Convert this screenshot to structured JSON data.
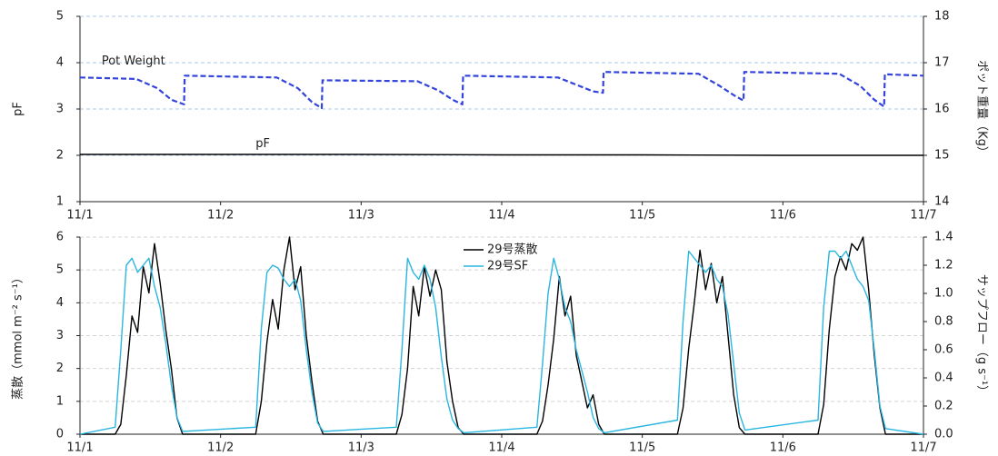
{
  "chart_data": [
    {
      "type": "line",
      "ylabel": "pF",
      "y2label": "ポット重量（Kg）",
      "xlim": [
        0,
        6
      ],
      "xticks": [
        {
          "value": 0,
          "label": "11/1"
        },
        {
          "value": 1,
          "label": "11/2"
        },
        {
          "value": 2,
          "label": "11/3"
        },
        {
          "value": 3,
          "label": "11/4"
        },
        {
          "value": 4,
          "label": "11/5"
        },
        {
          "value": 5,
          "label": "11/6"
        },
        {
          "value": 6,
          "label": "11/7"
        }
      ],
      "ylim": [
        1,
        5
      ],
      "yticks": [
        1,
        2,
        3,
        4,
        5
      ],
      "y2lim": [
        14,
        18
      ],
      "y2ticks": [
        14,
        15,
        16,
        17,
        18
      ],
      "grid": true,
      "grid_color": "#a8c8e8",
      "annotations": [
        "Pot Weight",
        "pF"
      ],
      "series": [
        {
          "name": "pF",
          "color": "#000000",
          "dash": false,
          "x": [
            0,
            1,
            2,
            3,
            4,
            5,
            6
          ],
          "values": [
            2.02,
            2.02,
            2.02,
            2.01,
            2.01,
            2.0,
            2.0
          ]
        },
        {
          "name": "Pot Weight",
          "color": "#3344dd",
          "dash": true,
          "axis": "y2",
          "x": [
            0,
            0.4,
            0.55,
            0.65,
            0.74,
            0.745,
            1.4,
            1.55,
            1.65,
            1.72,
            1.725,
            2.4,
            2.55,
            2.65,
            2.72,
            2.725,
            3.4,
            3.55,
            3.65,
            3.72,
            3.725,
            4.4,
            4.55,
            4.65,
            4.72,
            4.725,
            5.4,
            5.55,
            5.65,
            5.72,
            5.725,
            6
          ],
          "values": [
            16.68,
            16.65,
            16.45,
            16.2,
            16.1,
            16.72,
            16.68,
            16.45,
            16.15,
            16.02,
            16.62,
            16.6,
            16.4,
            16.2,
            16.1,
            16.72,
            16.68,
            16.5,
            16.38,
            16.35,
            16.8,
            16.76,
            16.5,
            16.3,
            16.18,
            16.8,
            16.76,
            16.5,
            16.2,
            16.05,
            16.75,
            16.72
          ]
        }
      ]
    },
    {
      "type": "line",
      "ylabel": "蒸散（mmol m⁻² s⁻¹）",
      "y2label": "サップフロー（g s⁻¹）",
      "xlim": [
        0,
        6
      ],
      "xticks": [
        {
          "value": 0,
          "label": "11/1"
        },
        {
          "value": 1,
          "label": "11/2"
        },
        {
          "value": 2,
          "label": "11/3"
        },
        {
          "value": 3,
          "label": "11/4"
        },
        {
          "value": 4,
          "label": "11/5"
        },
        {
          "value": 5,
          "label": "11/6"
        },
        {
          "value": 6,
          "label": "11/7"
        }
      ],
      "ylim": [
        0,
        6
      ],
      "yticks": [
        0,
        1,
        2,
        3,
        4,
        5,
        6
      ],
      "y2lim": [
        0,
        1.4
      ],
      "y2ticks": [
        {
          "value": 0,
          "label": "0.0"
        },
        0.2,
        0.4,
        0.6,
        0.8,
        {
          "value": 1,
          "label": "1.0"
        },
        1.2,
        1.4
      ],
      "grid": true,
      "grid_color": "#d4d4d4",
      "legend": "top",
      "x": [
        0,
        0.25,
        0.29,
        0.33,
        0.37,
        0.41,
        0.45,
        0.49,
        0.53,
        0.57,
        0.61,
        0.65,
        0.69,
        0.73,
        1.25,
        1.29,
        1.33,
        1.37,
        1.41,
        1.45,
        1.49,
        1.53,
        1.57,
        1.61,
        1.65,
        1.69,
        1.73,
        2.25,
        2.29,
        2.33,
        2.37,
        2.41,
        2.45,
        2.49,
        2.53,
        2.57,
        2.61,
        2.65,
        2.69,
        2.73,
        3.25,
        3.29,
        3.33,
        3.37,
        3.41,
        3.45,
        3.49,
        3.53,
        3.57,
        3.61,
        3.65,
        3.69,
        3.73,
        4.25,
        4.29,
        4.33,
        4.37,
        4.41,
        4.45,
        4.49,
        4.53,
        4.57,
        4.61,
        4.65,
        4.69,
        4.73,
        5.25,
        5.29,
        5.33,
        5.37,
        5.41,
        5.45,
        5.49,
        5.53,
        5.57,
        5.61,
        5.65,
        5.69,
        5.73,
        6
      ],
      "series": [
        {
          "name": "29号蒸散",
          "color": "#000000",
          "values": [
            0,
            0,
            0.3,
            1.8,
            3.6,
            3.1,
            5.1,
            4.3,
            5.8,
            4.6,
            3.2,
            2.0,
            0.5,
            0,
            0,
            1.0,
            2.8,
            4.1,
            3.2,
            5.0,
            6.0,
            4.4,
            5.1,
            3.0,
            1.6,
            0.4,
            0,
            0,
            0.6,
            2.0,
            4.5,
            3.6,
            5.1,
            4.2,
            5.0,
            4.4,
            2.2,
            1.0,
            0.2,
            0,
            0,
            0.4,
            1.5,
            2.9,
            4.8,
            3.6,
            4.2,
            2.4,
            1.6,
            0.8,
            1.2,
            0.3,
            0,
            0,
            0.8,
            2.6,
            4.0,
            5.6,
            4.4,
            5.2,
            4.0,
            4.8,
            3.0,
            1.2,
            0.2,
            0,
            0,
            0.9,
            3.2,
            4.8,
            5.4,
            5.0,
            5.8,
            5.6,
            6.0,
            4.4,
            2.4,
            0.8,
            0,
            0
          ]
        },
        {
          "name": "29号SF",
          "color": "#29b6e0",
          "axis": "y2",
          "values": [
            0,
            0.05,
            0.6,
            1.2,
            1.25,
            1.15,
            1.2,
            1.25,
            1.05,
            0.9,
            0.65,
            0.35,
            0.12,
            0.02,
            0.05,
            0.75,
            1.15,
            1.2,
            1.18,
            1.1,
            1.05,
            1.1,
            0.95,
            0.6,
            0.3,
            0.08,
            0.02,
            0.05,
            0.6,
            1.25,
            1.15,
            1.1,
            1.2,
            1.1,
            0.9,
            0.55,
            0.25,
            0.1,
            0.04,
            0.01,
            0.05,
            0.5,
            1.0,
            1.25,
            1.1,
            0.9,
            0.8,
            0.6,
            0.45,
            0.3,
            0.12,
            0.04,
            0.01,
            0.1,
            0.8,
            1.3,
            1.25,
            1.2,
            1.15,
            1.2,
            1.1,
            1.05,
            0.85,
            0.5,
            0.15,
            0.03,
            0.1,
            0.9,
            1.3,
            1.3,
            1.25,
            1.3,
            1.2,
            1.1,
            1.05,
            0.95,
            0.6,
            0.2,
            0.04,
            0
          ]
        }
      ]
    }
  ]
}
